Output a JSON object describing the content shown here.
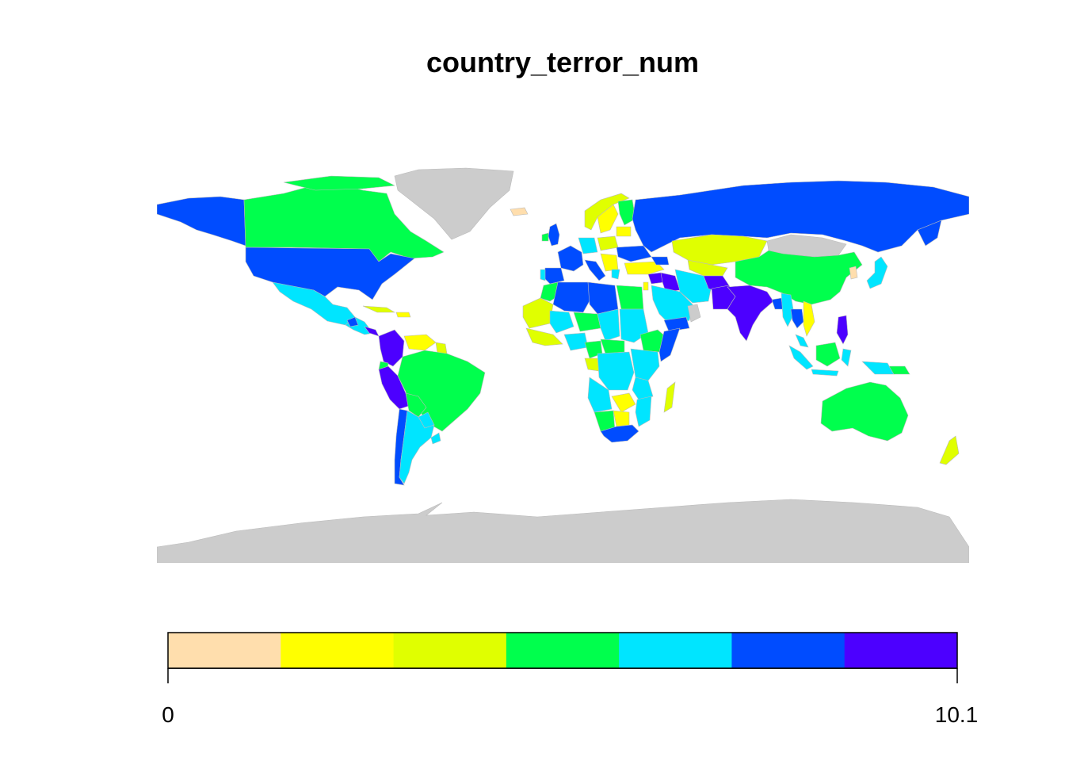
{
  "title": "country_terror_num",
  "legend": {
    "min_label": "0",
    "max_label": "10.1",
    "min_value": 0,
    "max_value": 10.1,
    "bins": [
      {
        "color": "#FFDEAD"
      },
      {
        "color": "#FFFF00"
      },
      {
        "color": "#E0FF00"
      },
      {
        "color": "#00FF4D"
      },
      {
        "color": "#00E5FF"
      },
      {
        "color": "#004CFF"
      },
      {
        "color": "#4C00FF"
      }
    ]
  },
  "colors": {
    "no_data": "#CCCCCC",
    "border": "#BBBBBB",
    "background": "#FFFFFF"
  }
}
